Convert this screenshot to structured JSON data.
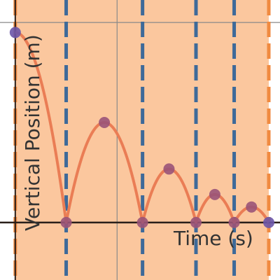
{
  "chart_data": {
    "type": "line",
    "title": "",
    "xlabel": "Time (s)",
    "ylabel": "Vertical Position (m)",
    "grid": true,
    "xlim": [
      -0.3,
      5.2
    ],
    "ylim": [
      -1.15,
      4.45
    ],
    "shaded_interval": [
      0,
      4.98
    ],
    "bounce_times": [
      1.0,
      2.5,
      3.55,
      4.3
    ],
    "arcs": [
      {
        "t_start": 0.0,
        "t_end": 1.0,
        "h_start": 3.8,
        "h_end": 0,
        "type": "fall"
      },
      {
        "t_start": 1.0,
        "t_end": 2.5,
        "apex_t": 1.75,
        "apex_h": 2.0,
        "type": "bounce"
      },
      {
        "t_start": 2.5,
        "t_end": 3.55,
        "apex_t": 3.02,
        "apex_h": 1.07,
        "type": "bounce"
      },
      {
        "t_start": 3.55,
        "t_end": 4.3,
        "apex_t": 3.92,
        "apex_h": 0.56,
        "type": "bounce"
      },
      {
        "t_start": 4.3,
        "t_end": 4.98,
        "apex_t": 4.64,
        "apex_h": 0.31,
        "type": "bounce"
      }
    ],
    "series": [
      {
        "marker": "points",
        "points": [
          {
            "x": 0.0,
            "y": 3.8
          },
          {
            "x": 1.0,
            "y": 0.0
          },
          {
            "x": 1.75,
            "y": 2.0
          },
          {
            "x": 2.5,
            "y": 0.0
          },
          {
            "x": 3.02,
            "y": 1.07
          },
          {
            "x": 3.55,
            "y": 0.0
          },
          {
            "x": 3.92,
            "y": 0.56
          },
          {
            "x": 4.3,
            "y": 0.0
          },
          {
            "x": 4.64,
            "y": 0.31
          },
          {
            "x": 4.98,
            "y": 0.0
          }
        ]
      }
    ]
  },
  "colors": {
    "shade": "#fbc79e",
    "curve": "#ea7d55",
    "point": "#9a5378",
    "endpoint": "#6a55a8",
    "dashed_blue": "#3e6a99",
    "dashed_orange": "#f08a40",
    "axis": "#2a1f1a",
    "grid": "#8a8a8a"
  }
}
